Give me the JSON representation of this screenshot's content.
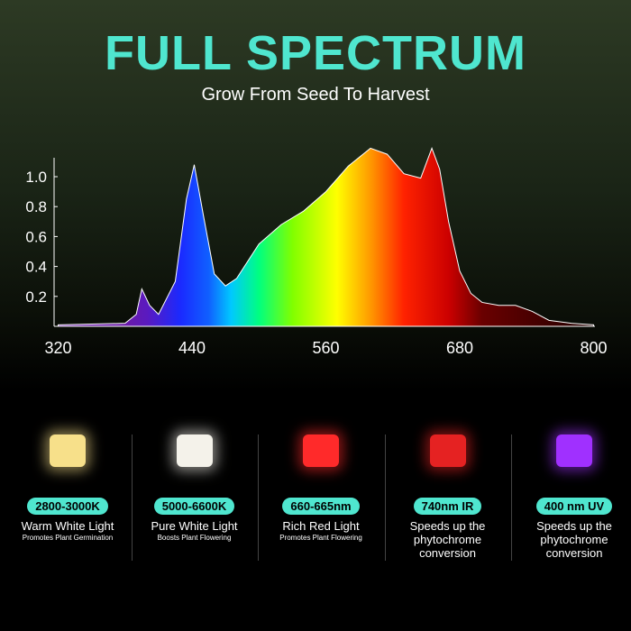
{
  "title": "FULL SPECTRUM",
  "subtitle": "Grow From Seed To Harvest",
  "chart_data": {
    "type": "area",
    "title": "",
    "xlabel": "",
    "ylabel": "",
    "xlim": [
      320,
      800
    ],
    "ylim": [
      0,
      1.2
    ],
    "x_ticks": [
      320,
      440,
      560,
      680,
      800
    ],
    "y_ticks": [
      0.2,
      0.4,
      0.6,
      0.8,
      1.0
    ],
    "x_tick_labels": [
      "320",
      "440",
      "560",
      "680",
      "800"
    ],
    "y_tick_labels": [
      "0.2",
      "0.4",
      "0.6",
      "0.8",
      "1.0"
    ],
    "grid": false,
    "x": [
      320,
      380,
      390,
      395,
      402,
      410,
      425,
      435,
      442,
      450,
      460,
      470,
      480,
      500,
      520,
      540,
      560,
      580,
      600,
      615,
      630,
      645,
      655,
      662,
      670,
      680,
      690,
      700,
      715,
      730,
      745,
      760,
      780,
      800
    ],
    "y": [
      0.01,
      0.02,
      0.08,
      0.25,
      0.14,
      0.08,
      0.3,
      0.85,
      1.08,
      0.75,
      0.35,
      0.27,
      0.32,
      0.55,
      0.68,
      0.77,
      0.9,
      1.07,
      1.19,
      1.15,
      1.02,
      0.99,
      1.19,
      1.05,
      0.7,
      0.37,
      0.22,
      0.16,
      0.14,
      0.14,
      0.1,
      0.04,
      0.02,
      0.01
    ]
  },
  "leds": [
    {
      "badge": "2800-3000K",
      "label": "Warm White Light",
      "desc": "Promotes Plant Germination",
      "color": "#f7e08a"
    },
    {
      "badge": "5000-6600K",
      "label": "Pure White Light",
      "desc": "Boosts Plant Flowering",
      "color": "#f4f2ea"
    },
    {
      "badge": "660-665nm",
      "label": "Rich Red Light",
      "desc": "Promotes Plant Flowering",
      "color": "#ff2a2a"
    },
    {
      "badge": "740nm IR",
      "label": "Speeds up the phytochrome conversion",
      "desc": "",
      "color": "#e52222"
    },
    {
      "badge": "400 nm UV",
      "label": "Speeds up the phytochrome conversion",
      "desc": "",
      "color": "#a030ff"
    }
  ]
}
